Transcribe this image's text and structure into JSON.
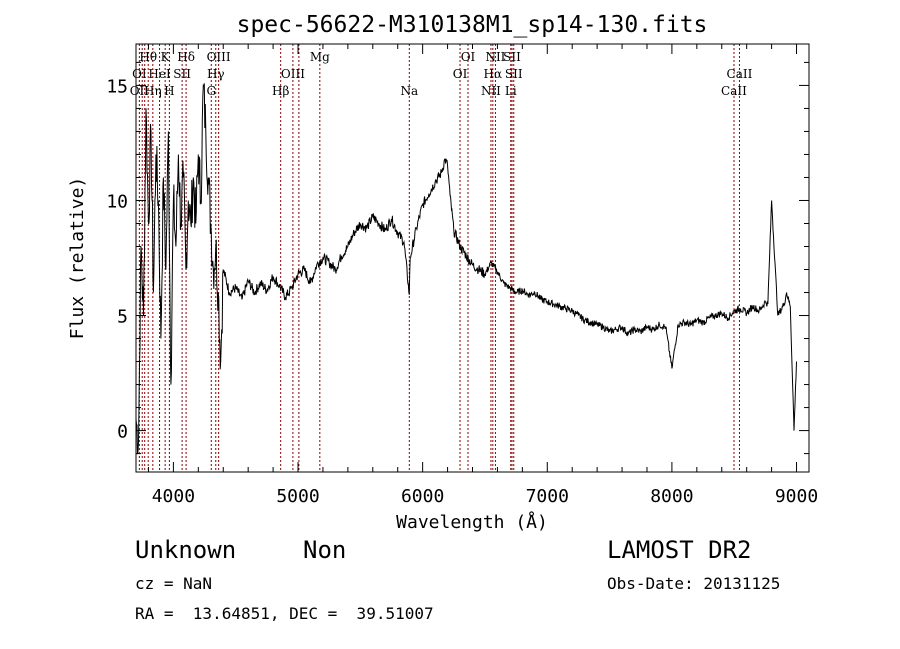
{
  "chart_data": {
    "type": "line",
    "title": "spec-56622-M310138M1_sp14-130.fits",
    "xlabel": "Wavelength (Å)",
    "ylabel": "Flux (relative)",
    "xlim": [
      3700,
      9100
    ],
    "ylim": [
      -1.8,
      16.8
    ],
    "xticks": [
      4000,
      5000,
      6000,
      7000,
      8000,
      9000
    ],
    "yticks": [
      0,
      5,
      10,
      15
    ],
    "line_color": "#000000",
    "marker_color": "#8b0000",
    "series": [
      {
        "x": [
          3700,
          3720,
          3740,
          3760,
          3780,
          3800,
          3820,
          3840,
          3860,
          3880,
          3900,
          3920,
          3940,
          3960,
          3980,
          4000,
          4020,
          4040,
          4060,
          4080,
          4100,
          4120,
          4140,
          4160,
          4180,
          4200,
          4220,
          4240,
          4260,
          4280,
          4300,
          4320,
          4340,
          4360,
          4380,
          4400,
          4450,
          4500,
          4550,
          4600,
          4650,
          4700,
          4750,
          4800,
          4850,
          4900,
          4950,
          5000,
          5050,
          5100,
          5150,
          5200,
          5250,
          5300,
          5350,
          5400,
          5450,
          5500,
          5550,
          5600,
          5650,
          5700,
          5750,
          5800,
          5850,
          5893,
          5900,
          5950,
          6000,
          6050,
          6100,
          6150,
          6180,
          6200,
          6220,
          6250,
          6300,
          6350,
          6400,
          6450,
          6500,
          6550,
          6600,
          6650,
          6700,
          6750,
          6800,
          6850,
          6900,
          6950,
          7000,
          7050,
          7100,
          7150,
          7200,
          7250,
          7300,
          7350,
          7400,
          7450,
          7500,
          7550,
          7600,
          7650,
          7700,
          7750,
          7800,
          7850,
          7900,
          7950,
          8000,
          8050,
          8100,
          8150,
          8200,
          8250,
          8300,
          8350,
          8400,
          8450,
          8500,
          8550,
          8600,
          8650,
          8700,
          8750,
          8770,
          8800,
          8850,
          8900,
          8920,
          8950,
          8980,
          9000
        ],
        "y": [
          0.5,
          -0.5,
          8,
          5,
          14,
          9,
          13,
          6,
          12,
          10,
          4,
          11,
          7,
          13,
          2,
          10,
          8,
          12,
          9,
          11,
          7,
          10,
          9,
          11,
          9,
          12,
          10,
          15,
          13,
          11,
          9,
          7,
          8,
          6,
          3,
          7,
          6,
          6.2,
          5.7,
          6.5,
          6,
          6.4,
          6.1,
          6.7,
          6.3,
          5.8,
          6.2,
          6.8,
          7,
          6.4,
          7.2,
          7.5,
          7.3,
          7,
          7.6,
          8,
          8.6,
          9,
          8.8,
          9.3,
          9,
          8.7,
          9.2,
          8.6,
          8.2,
          5.9,
          7.5,
          8.8,
          9.8,
          10.3,
          10.8,
          11.2,
          11.8,
          11.5,
          10.2,
          8.7,
          8,
          7.6,
          7.2,
          7,
          6.8,
          7.3,
          6.9,
          6.4,
          6.2,
          6,
          6.1,
          5.9,
          6,
          5.7,
          5.6,
          5.5,
          5.4,
          5.3,
          5.2,
          5,
          4.8,
          4.7,
          4.6,
          4.5,
          4.3,
          4.4,
          4.5,
          4.2,
          4.4,
          4.3,
          4.5,
          4.4,
          4.6,
          4.5,
          2.7,
          4.6,
          4.7,
          4.6,
          4.8,
          4.7,
          4.9,
          5,
          5.1,
          4.9,
          5.2,
          5.3,
          5.1,
          5.4,
          5.2,
          5.6,
          5.5,
          10,
          5,
          5.5,
          6,
          5.4,
          0,
          3
        ]
      }
    ],
    "lines": [
      {
        "label": "OII",
        "x": 3727,
        "row": 3
      },
      {
        "label": "OI",
        "x": 3727,
        "row": 2
      },
      {
        "label": "Hθ",
        "x": 3798,
        "row": 1
      },
      {
        "label": "Hη",
        "x": 3835,
        "row": 3
      },
      {
        "label": "HeI",
        "x": 3889,
        "row": 2
      },
      {
        "label": "K",
        "x": 3934,
        "row": 1
      },
      {
        "label": "SII",
        "x": 4070,
        "row": 2
      },
      {
        "label": "H",
        "x": 3968,
        "row": 3
      },
      {
        "label": "Hδ",
        "x": 4102,
        "row": 1
      },
      {
        "label": "OIII",
        "x": 4363,
        "row": 1
      },
      {
        "label": "Hγ",
        "x": 4340,
        "row": 2
      },
      {
        "label": "G",
        "x": 4304,
        "row": 3
      },
      {
        "label": "OIII",
        "x": 4959,
        "row": 2
      },
      {
        "label": "Hβ",
        "x": 4861,
        "row": 3
      },
      {
        "label": "Mg",
        "x": 5175,
        "row": 1
      },
      {
        "label": "Na",
        "x": 5893,
        "row": 3
      },
      {
        "label": "OI",
        "x": 6364,
        "row": 1
      },
      {
        "label": "OI",
        "x": 6300,
        "row": 2
      },
      {
        "label": "NII",
        "x": 6584,
        "row": 1
      },
      {
        "label": "SII",
        "x": 6717,
        "row": 1
      },
      {
        "label": "Hα",
        "x": 6563,
        "row": 2
      },
      {
        "label": "SII",
        "x": 6731,
        "row": 2
      },
      {
        "label": "NII",
        "x": 6548,
        "row": 3
      },
      {
        "label": "Li",
        "x": 6707,
        "row": 3
      },
      {
        "label": "CaII",
        "x": 8542,
        "row": 2
      },
      {
        "label": "CaII",
        "x": 8498,
        "row": 3
      }
    ],
    "line_marker_x": [
      3727,
      3750,
      3770,
      3798,
      3835,
      3889,
      3934,
      3968,
      4070,
      4102,
      4304,
      4340,
      4363,
      4861,
      4959,
      5007,
      5175,
      5893,
      6300,
      6364,
      6548,
      6563,
      6584,
      6707,
      6717,
      6731,
      8498,
      8542
    ]
  },
  "info": {
    "object_class": "Unknown",
    "subclass": "Non",
    "survey": "LAMOST DR2",
    "cz": "cz = NaN",
    "obs_date": "Obs-Date: 20131125",
    "coords": "RA =  13.64851, DEC =  39.51007"
  }
}
